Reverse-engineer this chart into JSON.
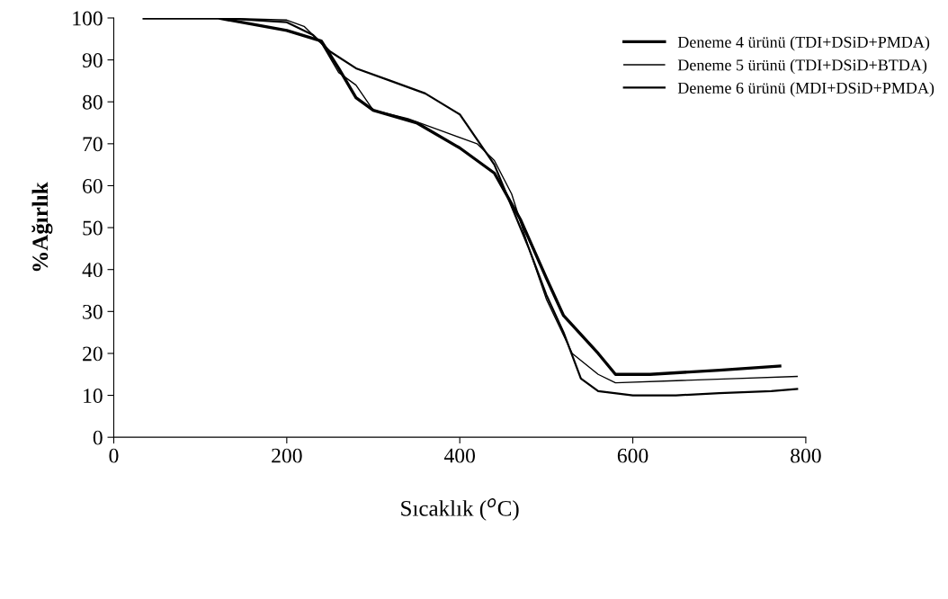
{
  "chart_data": {
    "type": "line",
    "xlabel": "Sıcaklık ($^{o}$C)",
    "ylabel": "%Ağırlık",
    "xlim": [
      0,
      800
    ],
    "ylim": [
      0,
      100
    ],
    "xticks": [
      0,
      200,
      400,
      600,
      800
    ],
    "yticks": [
      0,
      10,
      20,
      30,
      40,
      50,
      60,
      70,
      80,
      90,
      100
    ],
    "grid": false,
    "legend": "top right",
    "marker": "none",
    "line_style": "solid",
    "series": [
      {
        "name": "Deneme 4 ürünü (TDI+DSiD+PMDA)",
        "color": "#000000",
        "x": [
          35,
          120,
          160,
          200,
          240,
          260,
          280,
          300,
          350,
          400,
          440,
          470,
          500,
          520,
          560,
          580,
          620,
          700,
          770
        ],
        "values": [
          100,
          100,
          98.5,
          97,
          94.5,
          88,
          81,
          78,
          75,
          69,
          63,
          52,
          38,
          29,
          20,
          15,
          15,
          16,
          17
        ]
      },
      {
        "name": "Deneme 5 ürünü (TDI+DSiD+BTDA)",
        "color": "#000000",
        "x": [
          35,
          120,
          200,
          220,
          240,
          260,
          280,
          300,
          340,
          380,
          420,
          440,
          460,
          480,
          500,
          530,
          560,
          580,
          650,
          720,
          790
        ],
        "values": [
          100,
          100,
          99.5,
          98,
          94,
          87,
          84,
          78,
          76,
          73,
          70,
          66,
          58,
          45,
          33,
          20,
          15,
          13,
          13.5,
          14,
          14.5
        ]
      },
      {
        "name": "Deneme 6 ürünü (MDI+DSiD+PMDA)",
        "color": "#000000",
        "x": [
          35,
          120,
          200,
          230,
          250,
          280,
          320,
          360,
          400,
          420,
          440,
          460,
          480,
          500,
          520,
          540,
          560,
          600,
          650,
          700,
          760,
          790
        ],
        "values": [
          100,
          100,
          99,
          96,
          92,
          88,
          85,
          82,
          77,
          71,
          65,
          55,
          45,
          34,
          25,
          14,
          11,
          10,
          10,
          10.5,
          11,
          11.5
        ]
      }
    ]
  }
}
